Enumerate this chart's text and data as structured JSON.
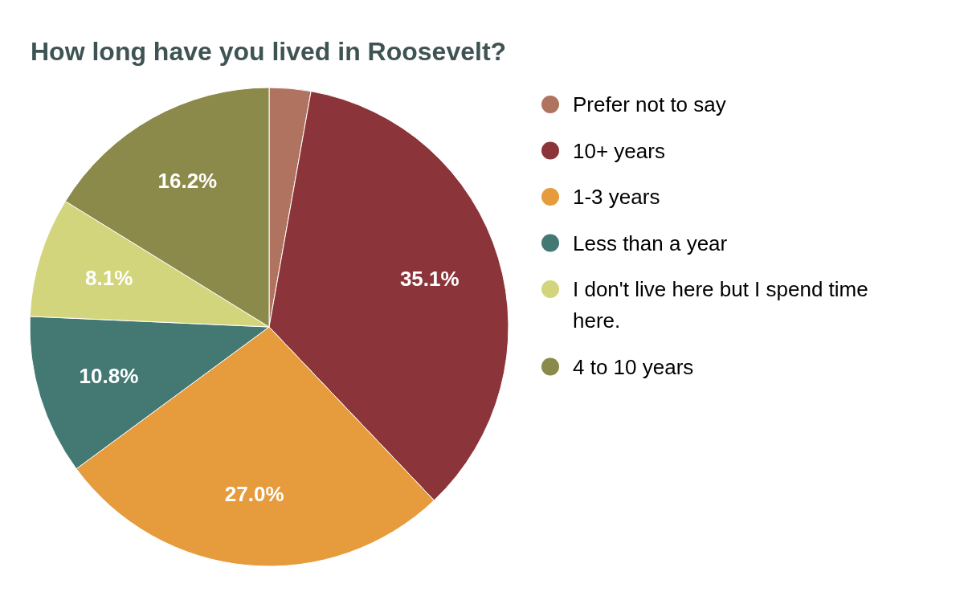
{
  "chart_data": {
    "type": "pie",
    "title": "How long have you lived in Roosevelt?",
    "categories": [
      "Prefer not to say",
      "10+ years",
      "1-3 years",
      "Less than a year",
      "I don't live here but I spend time here.",
      "4 to 10 years"
    ],
    "values": [
      2.8,
      35.1,
      27.0,
      10.8,
      8.1,
      16.2
    ],
    "colors": [
      "#b07360",
      "#8b3439",
      "#e69b3c",
      "#437873",
      "#d3d57c",
      "#8b8a4a"
    ],
    "value_labels": [
      null,
      "35.1%",
      "27.0%",
      "10.8%",
      "8.1%",
      "16.2%"
    ],
    "legend": "right"
  }
}
